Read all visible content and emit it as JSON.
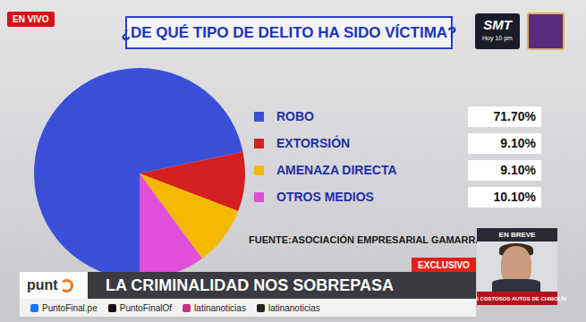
{
  "screen": {
    "live_badge": "EN VIVO",
    "promo": {
      "name": "SMT",
      "time": "Hoy 10 pm"
    },
    "tag": "EXCLUSIVO",
    "headline": "LA CRIMINALIDAD NOS SOBREPASA",
    "logo": "punt",
    "socials": [
      "PuntoFinal.pe",
      "PuntoFinalOf",
      "latinanoticias",
      "latinanoticias"
    ],
    "side_box": {
      "title": "EN BREVE",
      "caption": "LOS COSTOSOS AUTOS DE CHIBOLÍN"
    }
  },
  "chart_data": {
    "type": "pie",
    "title": "¿DE QUÉ TIPO DE DELITO HA SIDO VÍCTIMA?",
    "categories": [
      "ROBO",
      "EXTORSIÓN",
      "AMENAZA DIRECTA",
      "OTROS MEDIOS"
    ],
    "values": [
      71.7,
      9.1,
      9.1,
      10.1
    ],
    "value_labels": [
      "71.70%",
      "9.10%",
      "9.10%",
      "10.10%"
    ],
    "colors": [
      "#3a4fd8",
      "#d42020",
      "#f5b800",
      "#e04fd8"
    ],
    "legend": "right",
    "source": "FUENTE:ASOCIACIÓN EMPRESARIAL GAMARRA PERÚ"
  }
}
